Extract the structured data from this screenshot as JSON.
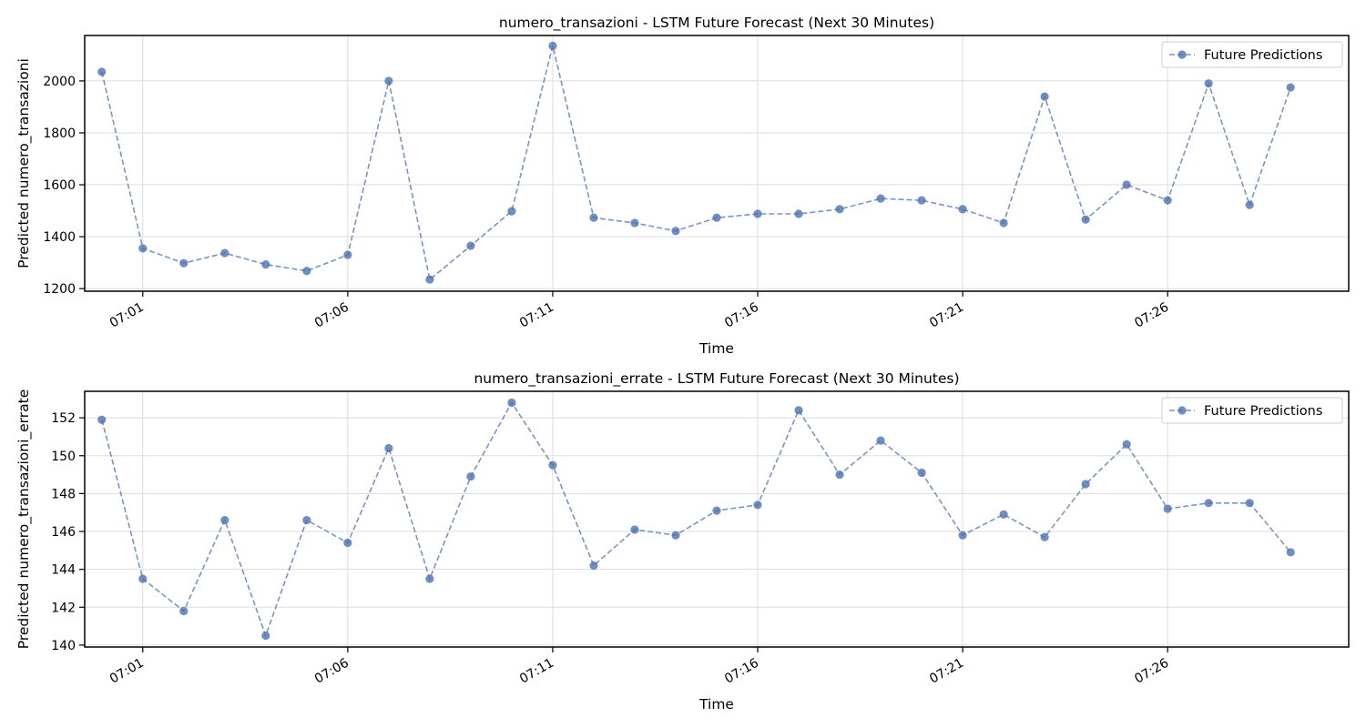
{
  "chart_data": [
    {
      "type": "line",
      "title": "numero_transazioni - LSTM Future Forecast (Next 30 Minutes)",
      "xlabel": "Time",
      "ylabel": "Predicted numero_transazioni",
      "x": [
        "07:00",
        "07:01",
        "07:02",
        "07:03",
        "07:04",
        "07:05",
        "07:06",
        "07:07",
        "07:08",
        "07:09",
        "07:10",
        "07:11",
        "07:12",
        "07:13",
        "07:14",
        "07:15",
        "07:16",
        "07:17",
        "07:18",
        "07:19",
        "07:20",
        "07:21",
        "07:22",
        "07:23",
        "07:24",
        "07:25",
        "07:26",
        "07:27",
        "07:28",
        "07:29"
      ],
      "x_ticks": [
        "07:01",
        "07:06",
        "07:11",
        "07:16",
        "07:21",
        "07:26"
      ],
      "xlim": [
        "06:59:35",
        "07:30:25"
      ],
      "y_ticks": [
        1200,
        1400,
        1600,
        1800,
        2000
      ],
      "ylim": [
        1190,
        2175
      ],
      "grid": true,
      "legend_position": "top-right",
      "series": [
        {
          "name": "Future Predictions",
          "color": "#4c72b0",
          "line_style": "dashed",
          "marker": "circle",
          "values": [
            2035,
            1355,
            1298,
            1337,
            1293,
            1268,
            1330,
            2000,
            1235,
            1365,
            1498,
            2135,
            1473,
            1453,
            1422,
            1473,
            1488,
            1488,
            1506,
            1547,
            1540,
            1506,
            1453,
            1940,
            1466,
            1600,
            1540,
            1990,
            1522,
            1975
          ]
        }
      ]
    },
    {
      "type": "line",
      "title": "numero_transazioni_errate - LSTM Future Forecast (Next 30 Minutes)",
      "xlabel": "Time",
      "ylabel": "Predicted numero_transazioni_errate",
      "x": [
        "07:00",
        "07:01",
        "07:02",
        "07:03",
        "07:04",
        "07:05",
        "07:06",
        "07:07",
        "07:08",
        "07:09",
        "07:10",
        "07:11",
        "07:12",
        "07:13",
        "07:14",
        "07:15",
        "07:16",
        "07:17",
        "07:18",
        "07:19",
        "07:20",
        "07:21",
        "07:22",
        "07:23",
        "07:24",
        "07:25",
        "07:26",
        "07:27",
        "07:28",
        "07:29"
      ],
      "x_ticks": [
        "07:01",
        "07:06",
        "07:11",
        "07:16",
        "07:21",
        "07:26"
      ],
      "xlim": [
        "06:59:35",
        "07:30:25"
      ],
      "y_ticks": [
        140,
        142,
        144,
        146,
        148,
        150,
        152
      ],
      "ylim": [
        139.9,
        153.4
      ],
      "grid": true,
      "legend_position": "top-right",
      "series": [
        {
          "name": "Future Predictions",
          "color": "#4c72b0",
          "line_style": "dashed",
          "marker": "circle",
          "values": [
            151.9,
            143.5,
            141.8,
            146.6,
            140.5,
            146.6,
            145.4,
            150.4,
            143.5,
            148.9,
            152.8,
            149.5,
            144.2,
            146.1,
            145.8,
            147.1,
            147.4,
            152.4,
            149.0,
            150.8,
            149.1,
            145.8,
            146.9,
            145.7,
            148.5,
            150.6,
            147.2,
            147.5,
            147.5,
            144.9
          ]
        }
      ]
    }
  ]
}
